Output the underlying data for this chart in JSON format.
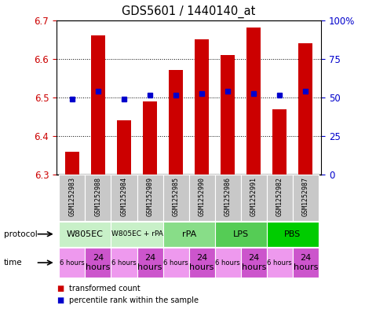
{
  "title": "GDS5601 / 1440140_at",
  "samples": [
    "GSM1252983",
    "GSM1252988",
    "GSM1252984",
    "GSM1252989",
    "GSM1252985",
    "GSM1252990",
    "GSM1252986",
    "GSM1252991",
    "GSM1252982",
    "GSM1252987"
  ],
  "red_values": [
    6.36,
    6.66,
    6.44,
    6.49,
    6.57,
    6.65,
    6.61,
    6.68,
    6.47,
    6.64
  ],
  "blue_values": [
    6.495,
    6.515,
    6.495,
    6.505,
    6.505,
    6.51,
    6.515,
    6.51,
    6.505,
    6.515
  ],
  "ylim": [
    6.3,
    6.7
  ],
  "yticks_left": [
    6.3,
    6.4,
    6.5,
    6.6,
    6.7
  ],
  "yticks_right": [
    0,
    25,
    50,
    75,
    100
  ],
  "proto_data": [
    {
      "label": "W805EC",
      "start": 0,
      "end": 2,
      "color": "#c8f0c8"
    },
    {
      "label": "W805EC + rPA",
      "start": 2,
      "end": 4,
      "color": "#c8f0c8"
    },
    {
      "label": "rPA",
      "start": 4,
      "end": 6,
      "color": "#88dd88"
    },
    {
      "label": "LPS",
      "start": 6,
      "end": 8,
      "color": "#55cc55"
    },
    {
      "label": "PBS",
      "start": 8,
      "end": 10,
      "color": "#00cc00"
    }
  ],
  "times": [
    "6 hours",
    "24\nhours",
    "6 hours",
    "24\nhours",
    "6 hours",
    "24\nhours",
    "6 hours",
    "24\nhours",
    "6 hours",
    "24\nhours"
  ],
  "time_large": [
    false,
    true,
    false,
    true,
    false,
    true,
    false,
    true,
    false,
    true
  ],
  "time_color_small": "#ee99ee",
  "time_color_large": "#cc55cc",
  "bar_color": "#cc0000",
  "dot_color": "#0000cc",
  "left_axis_color": "#cc0000",
  "right_axis_color": "#0000cc",
  "sample_bg": "#c8c8c8",
  "right_tick_labels": [
    "0",
    "25",
    "50",
    "75",
    "100%"
  ]
}
